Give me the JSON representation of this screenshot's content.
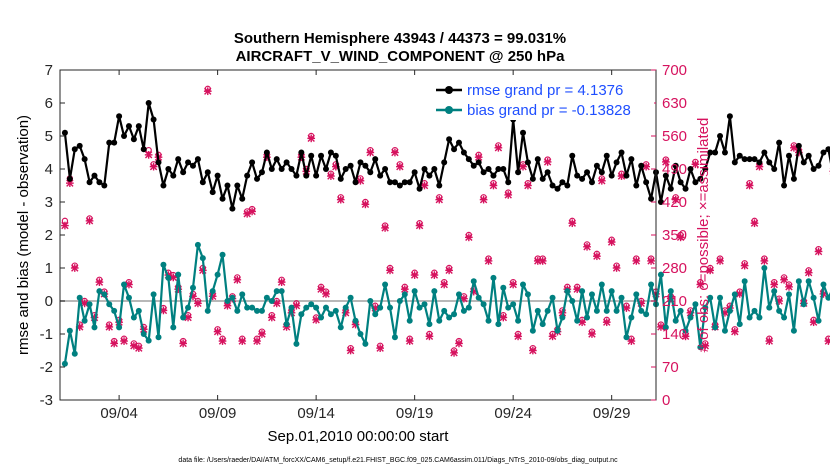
{
  "chart_data": {
    "type": "line",
    "title": "Southern Hemisphere 43943 / 44373 = 99.031%",
    "subtitle": "AIRCRAFT_V_WIND_COMPONENT @ 250 hPa",
    "xlabel": "Sep.01,2010 00:00:00 start",
    "ylabel_left": "rmse and bias (model - observation)",
    "ylabel_right": "# of obs: o=possible; ×=assimilated",
    "footnote": "data file: /Users/raeder/DAI/ATM_forcXX/CAM6_setup/f.e21.FHIST_BGC.f09_025.CAM6assim.011/Diags_NTrS_2010-09/obs_diag_output.nc",
    "xlim": [
      1,
      31.25
    ],
    "ylim_left": [
      -3,
      7
    ],
    "ylim_right": [
      0,
      700
    ],
    "x_ticks": [
      4,
      9,
      14,
      19,
      24,
      29
    ],
    "x_tick_labels": [
      "09/04",
      "09/09",
      "09/14",
      "09/19",
      "09/24",
      "09/29"
    ],
    "y_ticks_left": [
      -3,
      -2,
      -1,
      0,
      1,
      2,
      3,
      4,
      5,
      6,
      7
    ],
    "y_ticks_right": [
      0,
      70,
      140,
      210,
      280,
      350,
      420,
      490,
      560,
      630,
      700
    ],
    "x_start": 1.25,
    "x_step": 0.25,
    "colors": {
      "rmse": "#000000",
      "bias": "#008080",
      "obs": "#d6125e",
      "legend_text": "#1f4fff",
      "zero_line": "#b8b8b8"
    },
    "series": [
      {
        "name": "rmse grand pr = 4.1376",
        "axis": "left",
        "values": [
          5.1,
          3.7,
          4.6,
          4.7,
          4.3,
          3.6,
          3.8,
          3.6,
          3.5,
          4.8,
          4.8,
          5.6,
          5.0,
          5.3,
          4.9,
          5.3,
          4.6,
          6.0,
          5.5,
          4.2,
          3.5,
          4.0,
          3.8,
          4.3,
          3.9,
          4.2,
          4.1,
          4.3,
          3.6,
          3.9,
          3.3,
          3.8,
          3.1,
          3.5,
          2.8,
          3.5,
          3.1,
          3.8,
          4.2,
          3.7,
          3.9,
          4.5,
          4.0,
          4.3,
          4.0,
          4.2,
          4.0,
          3.8,
          4.5,
          3.8,
          4.4,
          3.8,
          4.4,
          4.0,
          4.5,
          4.4,
          3.7,
          4.0,
          4.1,
          3.6,
          4.2,
          4.1,
          3.9,
          4.3,
          3.8,
          4.0,
          3.6,
          3.6,
          3.5,
          3.6,
          3.6,
          3.9,
          3.4,
          4.0,
          3.8,
          4.0,
          3.5,
          4.2,
          4.9,
          4.6,
          4.8,
          4.5,
          4.3,
          4.1,
          4.2,
          3.9,
          4.0,
          3.8,
          4.0,
          4.0,
          3.6,
          5.5,
          3.9,
          5.1,
          4.2,
          3.7,
          4.3,
          3.7,
          3.9,
          3.5,
          3.4,
          3.6,
          3.5,
          4.4,
          3.8,
          3.7,
          3.9,
          3.6,
          4.1,
          3.9,
          4.4,
          3.8,
          4.2,
          4.5,
          3.8,
          4.3,
          3.5,
          4.1,
          3.6,
          3.1,
          3.9,
          3.0,
          3.8,
          3.4,
          4.1,
          3.6,
          3.4,
          4.0,
          3.6,
          3.7,
          4.0,
          4.5,
          4.5,
          5.0,
          4.5,
          5.6,
          4.2,
          4.4,
          4.3,
          4.3,
          4.3,
          4.2,
          4.5,
          4.2,
          4.0,
          4.8,
          3.5,
          4.4,
          3.7,
          4.7,
          4.2,
          4.4,
          4.0,
          4.1,
          4.5,
          4.6,
          3.8,
          4.3,
          3.8,
          4.1,
          4.2,
          3.7
        ]
      },
      {
        "name": "bias grand pr = -0.13828",
        "axis": "left",
        "values": [
          -1.9,
          -0.9,
          -1.6,
          0.1,
          -0.6,
          -0.1,
          -0.8,
          0.3,
          0.2,
          -0.1,
          -0.3,
          -0.8,
          0.5,
          0.1,
          -0.5,
          -0.3,
          -1.0,
          -1.2,
          0.2,
          -1.1,
          1.1,
          0.7,
          -0.8,
          0.8,
          -0.5,
          -0.2,
          0.4,
          1.7,
          1.3,
          -0.3,
          0.3,
          0.8,
          1.4,
          0.0,
          0.1,
          -0.3,
          0.2,
          -0.2,
          -0.2,
          -0.3,
          -0.3,
          0.1,
          0.0,
          0.3,
          0.3,
          -0.7,
          -0.2,
          -1.3,
          -0.4,
          -0.2,
          -0.1,
          -0.2,
          -0.5,
          -0.2,
          -0.4,
          -0.3,
          -0.8,
          -0.2,
          0.1,
          -0.6,
          -1.0,
          -1.3,
          0.0,
          -0.4,
          -0.2,
          0.5,
          -0.2,
          -1.1,
          0.0,
          0.2,
          -0.6,
          0.3,
          -0.2,
          -0.1,
          -0.7,
          0.3,
          -0.6,
          -0.3,
          -0.5,
          -0.4,
          0.2,
          -0.3,
          -0.2,
          0.6,
          0.1,
          -0.1,
          -0.6,
          0.7,
          -0.7,
          0.4,
          -0.2,
          -0.1,
          -0.6,
          0.5,
          0.2,
          -0.9,
          -0.3,
          -0.7,
          -0.3,
          0.1,
          -0.9,
          -0.5,
          0.3,
          0.0,
          -0.6,
          0.3,
          -0.5,
          0.2,
          -0.3,
          0.5,
          -0.3,
          0.3,
          -0.3,
          0.1,
          -1.1,
          -0.5,
          0.2,
          -0.3,
          -0.4,
          0.5,
          -0.1,
          0.8,
          -0.8,
          0.3,
          -0.6,
          -0.3,
          -0.9,
          -0.5,
          -0.1,
          -1.4,
          -0.2,
          0.1,
          -0.8,
          0.1,
          -0.9,
          -0.3,
          0.2,
          -0.7,
          0.6,
          -0.5,
          -0.3,
          -0.5,
          1.0,
          -0.2,
          0.3,
          -0.3,
          -0.5,
          0.2,
          -0.9,
          0.6,
          -0.1,
          0.6,
          0.1,
          -0.6,
          0.5,
          0.1,
          0.4,
          -0.7,
          0.6,
          -0.2,
          0.6,
          -1.1
        ]
      },
      {
        "name": "# of obs possible",
        "axis": "right",
        "values": [
          380,
          470,
          285,
          160,
          210,
          385,
          180,
          255,
          230,
          160,
          125,
          170,
          130,
          250,
          120,
          115,
          155,
          530,
          500,
          520,
          195,
          270,
          265,
          240,
          125,
          180,
          225,
          210,
          280,
          660,
          225,
          150,
          130,
          205,
          220,
          260,
          130,
          400,
          405,
          130,
          145,
          520,
          180,
          210,
          255,
          160,
          190,
          205,
          520,
          490,
          560,
          175,
          240,
          230,
          480,
          500,
          430,
          190,
          110,
          165,
          470,
          420,
          530,
          200,
          115,
          370,
          280,
          530,
          500,
          240,
          130,
          270,
          375,
          460,
          140,
          270,
          430,
          250,
          280,
          105,
          125,
          220,
          350,
          235,
          520,
          430,
          300,
          460,
          540,
          180,
          440,
          250,
          140,
          500,
          460,
          110,
          300,
          300,
          510,
          140,
          150,
          190,
          240,
          380,
          240,
          170,
          330,
          145,
          310,
          470,
          170,
          340,
          285,
          480,
          200,
          130,
          300,
          210,
          500,
          300,
          230,
          160,
          510,
          220,
          430,
          350,
          140,
          190,
          505,
          250,
          120,
          280,
          160,
          300,
          190,
          200,
          150,
          230,
          290,
          460,
          380,
          500,
          300,
          130,
          250,
          215,
          260,
          245,
          540,
          530,
          210,
          275,
          170,
          320,
          230,
          130,
          490,
          260,
          230,
          470,
          380,
          0
        ]
      },
      {
        "name": "# of obs assimilated",
        "axis": "right",
        "values": [
          370,
          460,
          280,
          155,
          205,
          380,
          175,
          250,
          225,
          155,
          120,
          165,
          125,
          245,
          115,
          110,
          150,
          520,
          495,
          515,
          190,
          265,
          260,
          235,
          120,
          175,
          220,
          205,
          275,
          655,
          220,
          145,
          125,
          200,
          215,
          255,
          125,
          395,
          400,
          125,
          140,
          515,
          175,
          205,
          250,
          155,
          185,
          200,
          515,
          485,
          555,
          170,
          235,
          225,
          475,
          495,
          425,
          185,
          105,
          160,
          465,
          415,
          525,
          195,
          110,
          365,
          275,
          525,
          495,
          235,
          125,
          265,
          370,
          455,
          135,
          265,
          425,
          245,
          275,
          100,
          120,
          215,
          345,
          230,
          515,
          425,
          295,
          455,
          535,
          175,
          435,
          245,
          135,
          495,
          455,
          105,
          295,
          295,
          505,
          135,
          145,
          185,
          235,
          375,
          235,
          165,
          325,
          140,
          305,
          465,
          165,
          335,
          280,
          475,
          195,
          125,
          295,
          205,
          495,
          295,
          225,
          155,
          505,
          215,
          425,
          345,
          135,
          185,
          500,
          245,
          115,
          275,
          155,
          295,
          185,
          195,
          145,
          225,
          285,
          455,
          375,
          495,
          295,
          125,
          245,
          210,
          255,
          240,
          535,
          525,
          205,
          270,
          165,
          315,
          225,
          125,
          485,
          255,
          225,
          465,
          375,
          0
        ]
      }
    ]
  }
}
